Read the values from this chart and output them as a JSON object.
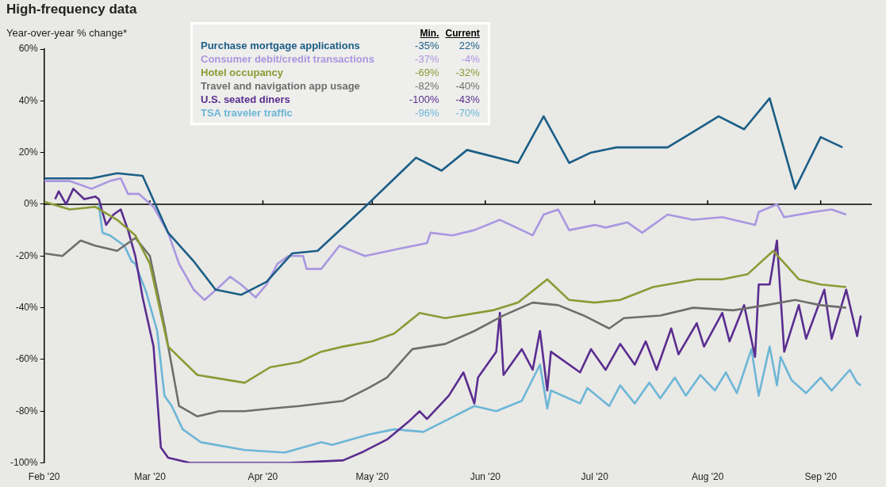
{
  "chart_data": {
    "type": "line",
    "title": "High-frequency data",
    "ylabel": "Year-over-year % change*",
    "xlim": [
      "2020-02-01",
      "2020-09-15"
    ],
    "xticks": [
      {
        "value": "2020-02-01",
        "label": "Feb '20"
      },
      {
        "value": "2020-03-01",
        "label": "Mar '20"
      },
      {
        "value": "2020-04-01",
        "label": "Apr '20"
      },
      {
        "value": "2020-05-01",
        "label": "May '20"
      },
      {
        "value": "2020-06-01",
        "label": "Jun '20"
      },
      {
        "value": "2020-07-01",
        "label": "Jul '20"
      },
      {
        "value": "2020-08-01",
        "label": "Aug '20"
      },
      {
        "value": "2020-09-01",
        "label": "Sep '20"
      }
    ],
    "ylim": [
      -100,
      60
    ],
    "yticks": [
      {
        "value": -100,
        "label": "-100%"
      },
      {
        "value": -80,
        "label": "-80%"
      },
      {
        "value": -60,
        "label": "-60%"
      },
      {
        "value": -40,
        "label": "-40%"
      },
      {
        "value": -20,
        "label": "-20%"
      },
      {
        "value": 0,
        "label": "0%"
      },
      {
        "value": 20,
        "label": "20%"
      },
      {
        "value": 40,
        "label": "40%"
      },
      {
        "value": 60,
        "label": "60%"
      }
    ],
    "ref_lines": [
      {
        "axis": "y",
        "value": 0,
        "color": "#000000"
      }
    ],
    "legend": "top",
    "marker": "none",
    "line_style": "solid",
    "annotations": [
      "Min.",
      "Current",
      "-35%",
      "22%",
      "-37%",
      "-4%",
      "-69%",
      "-32%",
      "-82%",
      "-40%",
      "-100%",
      "-43%",
      "-96%",
      "-70%"
    ],
    "series": [
      {
        "name": "Purchase mortgage applications",
        "color": "#1b5e86",
        "x": [
          "2020-02-01",
          "2020-02-14",
          "2020-02-21",
          "2020-02-28",
          "2020-03-06",
          "2020-03-13",
          "2020-03-19",
          "2020-03-26",
          "2020-04-02",
          "2020-04-09",
          "2020-04-16",
          "2020-04-29",
          "2020-05-13",
          "2020-05-20",
          "2020-05-27",
          "2020-06-10",
          "2020-06-17",
          "2020-06-24",
          "2020-06-30",
          "2020-07-07",
          "2020-07-21",
          "2020-07-28",
          "2020-08-04",
          "2020-08-11",
          "2020-08-18",
          "2020-08-25",
          "2020-09-01",
          "2020-09-07"
        ],
        "values": [
          10,
          10,
          12,
          11,
          -11,
          -22,
          -33,
          -35,
          -30,
          -19,
          -18,
          -1,
          18,
          13,
          21,
          16,
          34,
          16,
          20,
          22,
          22,
          28,
          34,
          29,
          41,
          6,
          26,
          22
        ]
      },
      {
        "name": "Consumer debit/credit transactions",
        "color": "#a997e0",
        "x": [
          "2020-02-01",
          "2020-02-08",
          "2020-02-14",
          "2020-02-19",
          "2020-02-22",
          "2020-02-24",
          "2020-02-27",
          "2020-03-02",
          "2020-03-06",
          "2020-03-09",
          "2020-03-13",
          "2020-03-16",
          "2020-03-20",
          "2020-03-23",
          "2020-03-26",
          "2020-03-30",
          "2020-04-02",
          "2020-04-05",
          "2020-04-08",
          "2020-04-12",
          "2020-04-13",
          "2020-04-17",
          "2020-04-22",
          "2020-04-29",
          "2020-05-09",
          "2020-05-16",
          "2020-05-17",
          "2020-05-23",
          "2020-05-29",
          "2020-06-05",
          "2020-06-14",
          "2020-06-17",
          "2020-06-21",
          "2020-06-24",
          "2020-07-01",
          "2020-07-04",
          "2020-07-10",
          "2020-07-14",
          "2020-07-21",
          "2020-07-28",
          "2020-08-05",
          "2020-08-14",
          "2020-08-15",
          "2020-08-20",
          "2020-08-22",
          "2020-08-30",
          "2020-09-04",
          "2020-09-08"
        ],
        "values": [
          9,
          9,
          6,
          9,
          10,
          4,
          4,
          -1,
          -11,
          -23,
          -33,
          -37,
          -32,
          -28,
          -31,
          -36,
          -31,
          -23,
          -20,
          -20,
          -25,
          -25,
          -16,
          -20,
          -17,
          -15,
          -11,
          -12,
          -10,
          -6,
          -12,
          -4,
          -2,
          -10,
          -8,
          -9,
          -7,
          -11,
          -4,
          -6,
          -5,
          -8,
          -3,
          0,
          -5,
          -3,
          -2,
          -4
        ]
      },
      {
        "name": "Hotel occupancy",
        "color": "#8c9a35",
        "x": [
          "2020-02-01",
          "2020-02-08",
          "2020-02-15",
          "2020-02-21",
          "2020-02-26",
          "2020-03-01",
          "2020-03-06",
          "2020-03-14",
          "2020-03-27",
          "2020-04-03",
          "2020-04-11",
          "2020-04-17",
          "2020-04-23",
          "2020-05-01",
          "2020-05-07",
          "2020-05-14",
          "2020-05-21",
          "2020-06-03",
          "2020-06-10",
          "2020-06-18",
          "2020-06-24",
          "2020-07-01",
          "2020-07-08",
          "2020-07-17",
          "2020-07-29",
          "2020-08-05",
          "2020-08-12",
          "2020-08-19",
          "2020-08-26",
          "2020-09-01",
          "2020-09-08"
        ],
        "values": [
          1,
          -2,
          -1,
          -6,
          -12,
          -23,
          -55,
          -66,
          -69,
          -63,
          -61,
          -57,
          -55,
          -53,
          -50,
          -42,
          -44,
          -41,
          -38,
          -29,
          -37,
          -38,
          -37,
          -32,
          -29,
          -29,
          -27,
          -18,
          -29,
          -31,
          -32
        ]
      },
      {
        "name": "Travel and navigation app usage",
        "color": "#6e6e6e",
        "x": [
          "2020-02-01",
          "2020-02-06",
          "2020-02-11",
          "2020-02-15",
          "2020-02-21",
          "2020-02-26",
          "2020-03-01",
          "2020-03-05",
          "2020-03-09",
          "2020-03-14",
          "2020-03-20",
          "2020-03-27",
          "2020-04-03",
          "2020-04-11",
          "2020-04-17",
          "2020-04-23",
          "2020-04-30",
          "2020-05-05",
          "2020-05-12",
          "2020-05-21",
          "2020-05-29",
          "2020-06-06",
          "2020-06-14",
          "2020-06-21",
          "2020-06-28",
          "2020-07-05",
          "2020-07-09",
          "2020-07-19",
          "2020-07-28",
          "2020-08-08",
          "2020-08-17",
          "2020-08-25",
          "2020-09-01",
          "2020-09-08"
        ],
        "values": [
          -19,
          -20,
          -14,
          -16,
          -18,
          -13,
          -20,
          -47,
          -78,
          -82,
          -80,
          -80,
          -79,
          -78,
          -77,
          -76,
          -71,
          -67,
          -56,
          -54,
          -49,
          -43,
          -38,
          -39,
          -43,
          -48,
          -44,
          -43,
          -40,
          -41,
          -39,
          -37,
          -39,
          -40
        ]
      },
      {
        "name": "U.S. seated diners",
        "color": "#5a2d8f",
        "x": [
          "2020-02-04",
          "2020-02-05",
          "2020-02-07",
          "2020-02-09",
          "2020-02-12",
          "2020-02-15",
          "2020-02-16",
          "2020-02-18",
          "2020-02-20",
          "2020-02-22",
          "2020-02-24",
          "2020-02-26",
          "2020-02-28",
          "2020-03-02",
          "2020-03-04",
          "2020-03-06",
          "2020-03-12",
          "2020-04-08",
          "2020-04-23",
          "2020-04-28",
          "2020-05-05",
          "2020-05-11",
          "2020-05-14",
          "2020-05-16",
          "2020-05-22",
          "2020-05-26",
          "2020-05-29",
          "2020-05-30",
          "2020-06-04",
          "2020-06-05",
          "2020-06-06",
          "2020-06-11",
          "2020-06-14",
          "2020-06-16",
          "2020-06-18",
          "2020-06-19",
          "2020-06-27",
          "2020-06-30",
          "2020-07-04",
          "2020-07-08",
          "2020-07-12",
          "2020-07-15",
          "2020-07-18",
          "2020-07-22",
          "2020-07-24",
          "2020-07-29",
          "2020-07-31",
          "2020-08-05",
          "2020-08-07",
          "2020-08-11",
          "2020-08-14",
          "2020-08-15",
          "2020-08-18",
          "2020-08-20",
          "2020-08-22",
          "2020-08-26",
          "2020-08-28",
          "2020-09-02",
          "2020-09-04",
          "2020-09-08",
          "2020-09-11",
          "2020-09-12"
        ],
        "values": [
          2,
          5,
          0,
          6,
          2,
          3,
          2,
          -8,
          -4,
          -2,
          -10,
          -20,
          -36,
          -55,
          -94,
          -98,
          -100,
          -100,
          -99,
          -96,
          -91,
          -84,
          -80,
          -83,
          -74,
          -65,
          -77,
          -67,
          -57,
          -42,
          -66,
          -56,
          -64,
          -49,
          -72,
          -57,
          -65,
          -56,
          -64,
          -54,
          -62,
          -53,
          -64,
          -48,
          -58,
          -46,
          -55,
          -42,
          -53,
          -39,
          -59,
          -31,
          -31,
          -14,
          -57,
          -39,
          -52,
          -33,
          -52,
          -33,
          -51,
          -43
        ]
      },
      {
        "name": "TSA traveler traffic",
        "color": "#6cb6d6",
        "x": [
          "2020-02-16",
          "2020-02-17",
          "2020-02-19",
          "2020-02-23",
          "2020-02-25",
          "2020-02-26",
          "2020-02-29",
          "2020-03-03",
          "2020-03-05",
          "2020-03-07",
          "2020-03-10",
          "2020-03-15",
          "2020-03-27",
          "2020-04-07",
          "2020-04-17",
          "2020-04-20",
          "2020-04-30",
          "2020-05-07",
          "2020-05-15",
          "2020-05-22",
          "2020-05-29",
          "2020-06-04",
          "2020-06-11",
          "2020-06-16",
          "2020-06-18",
          "2020-06-19",
          "2020-06-27",
          "2020-06-29",
          "2020-07-05",
          "2020-07-08",
          "2020-07-12",
          "2020-07-16",
          "2020-07-19",
          "2020-07-23",
          "2020-07-26",
          "2020-07-30",
          "2020-08-03",
          "2020-08-06",
          "2020-08-09",
          "2020-08-13",
          "2020-08-15",
          "2020-08-18",
          "2020-08-20",
          "2020-08-21",
          "2020-08-24",
          "2020-08-28",
          "2020-09-01",
          "2020-09-04",
          "2020-09-09",
          "2020-09-11",
          "2020-09-12"
        ],
        "values": [
          0,
          -11,
          -12,
          -16,
          -22,
          -23,
          -34,
          -49,
          -74,
          -78,
          -87,
          -92,
          -95,
          -96,
          -92,
          -93,
          -89,
          -87,
          -88,
          -83,
          -78,
          -80,
          -76,
          -62,
          -79,
          -72,
          -77,
          -71,
          -78,
          -70,
          -77,
          -69,
          -75,
          -67,
          -74,
          -66,
          -72,
          -65,
          -73,
          -56,
          -74,
          -55,
          -70,
          -59,
          -68,
          -73,
          -67,
          -72,
          -64,
          -69,
          -70
        ]
      }
    ]
  }
}
